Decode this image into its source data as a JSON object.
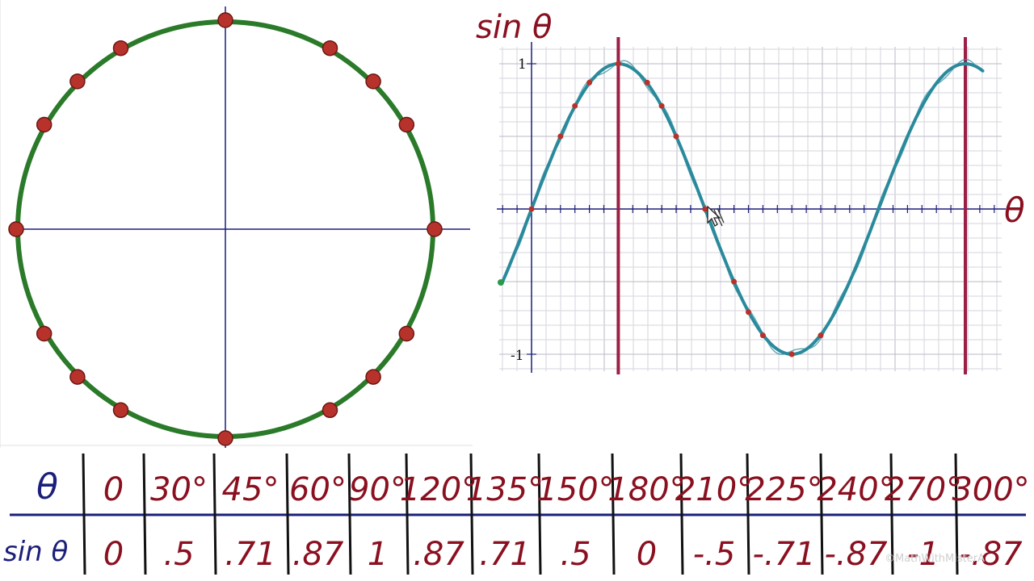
{
  "colors": {
    "circle": "#2a7a2a",
    "point_fill": "#b8322c",
    "point_stroke": "#6b1712",
    "axis": "#1b1f7a",
    "curve": "#2a8a9c",
    "marker_line": "#9c1f45",
    "handwriting": "#8a1020",
    "table_theta": "#1b1f7a",
    "table_rule": "#1b1f7a",
    "grid_minor": "#d6d6de",
    "grid_major": "#b9b9c6"
  },
  "graph": {
    "ylabel": "sin θ",
    "xlabel": "θ",
    "tick_top": "1",
    "tick_bottom": "-1"
  },
  "unit_circle": {
    "angles_deg": [
      0,
      30,
      45,
      60,
      90,
      120,
      135,
      150,
      180,
      210,
      225,
      240,
      270,
      300,
      315,
      330
    ]
  },
  "chart_data": {
    "type": "line",
    "x_unit": "degrees",
    "x": [
      0,
      30,
      45,
      60,
      90,
      120,
      135,
      150,
      180,
      210,
      225,
      240,
      270,
      300
    ],
    "y": [
      0,
      0.5,
      0.71,
      0.87,
      1,
      0.87,
      0.71,
      0.5,
      0,
      -0.5,
      -0.71,
      -0.87,
      -1,
      -0.87
    ],
    "ylim": [
      -1,
      1
    ],
    "ylabel": "sin θ",
    "xlabel": "θ",
    "grid": true,
    "vertical_markers_deg": [
      90,
      450
    ]
  },
  "table": {
    "row1_label": "θ",
    "row2_label": "sin θ",
    "headers": [
      "0",
      "30°",
      "45°",
      "60°",
      "90°",
      "120°",
      "135°",
      "150°",
      "180°",
      "210°",
      "225°",
      "240°",
      "270°",
      "300°"
    ],
    "values": [
      "0",
      ".5",
      ".71",
      ".87",
      "1",
      ".87",
      ".71",
      ".5",
      "0",
      "-.5",
      "-.71",
      "-.87",
      "-1",
      "-.87"
    ]
  },
  "watermark": "©MathWithMisterA"
}
